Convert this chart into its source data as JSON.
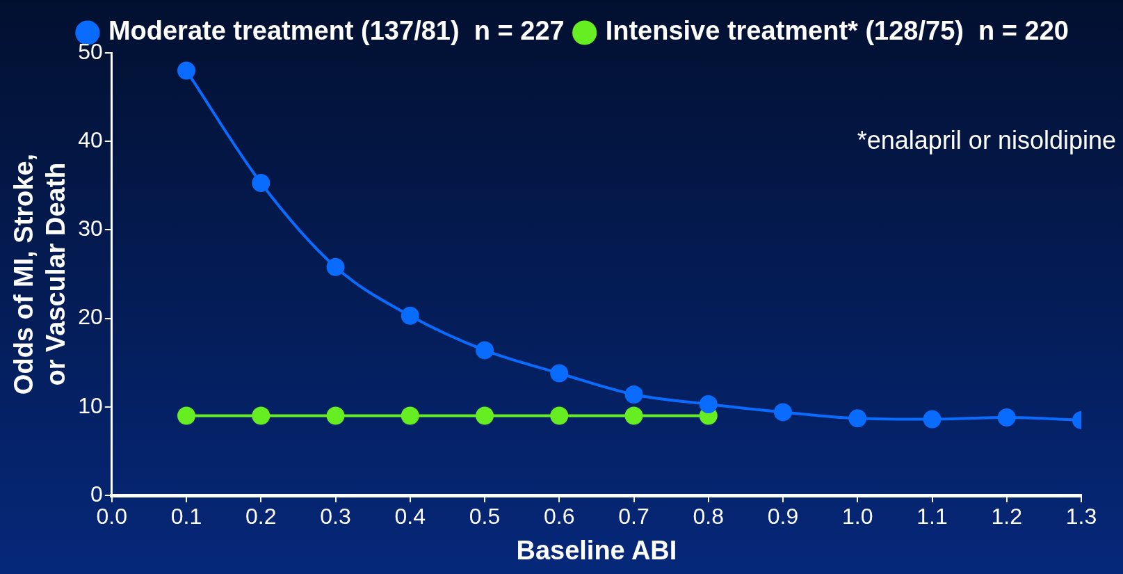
{
  "chart_data": {
    "type": "line",
    "xlabel": "Baseline ABI",
    "ylabel": "Odds of MI, Stroke,\nor Vascular Death",
    "annotations": [
      "*enalapril or nisoldipine"
    ],
    "series": [
      {
        "name": "Moderate treatment (137/81)  n = 227",
        "color": "#0a6cff",
        "x": [
          0.1,
          0.2,
          0.3,
          0.4,
          0.5,
          0.6,
          0.7,
          0.8,
          0.9,
          1.0,
          1.1,
          1.2,
          1.3
        ],
        "values": [
          48,
          35.3,
          25.8,
          20.3,
          16.4,
          13.8,
          11.4,
          10.3,
          9.4,
          8.7,
          8.6,
          8.8,
          8.5
        ]
      },
      {
        "name": "Intensive treatment* (128/75)  n = 220",
        "color": "#66ee22",
        "x": [
          0.1,
          0.2,
          0.3,
          0.4,
          0.5,
          0.6,
          0.7,
          0.8
        ],
        "values": [
          9,
          9,
          9,
          9,
          9,
          9,
          9,
          9
        ]
      }
    ],
    "xlim": [
      0,
      1.3
    ],
    "xticks": [
      {
        "value": 0,
        "label": "0.0"
      },
      0.1,
      0.2,
      0.3,
      0.4,
      0.5,
      0.6,
      0.7,
      0.8,
      0.9,
      {
        "value": 1,
        "label": "1.0"
      },
      1.1,
      1.2,
      1.3
    ],
    "ylim": [
      0,
      50
    ],
    "yticks": [
      0,
      10,
      20,
      30,
      40,
      50
    ],
    "grid": false,
    "legend": "top right",
    "marker": "circle",
    "line_style": "solid"
  }
}
